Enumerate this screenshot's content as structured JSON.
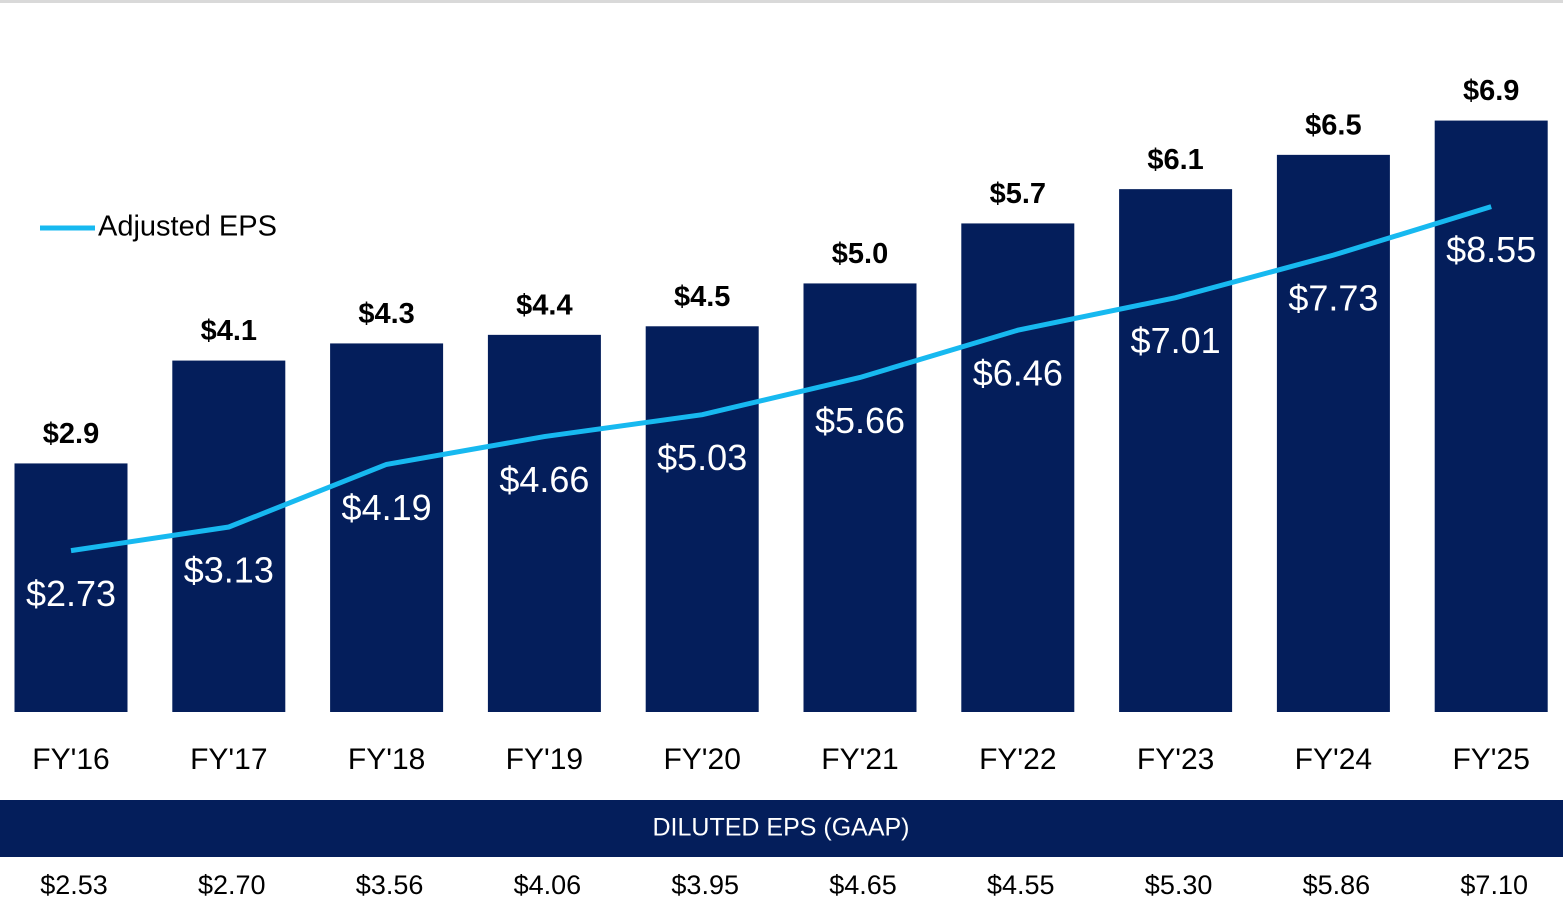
{
  "chart_data": {
    "type": "bar",
    "categories": [
      "FY'16",
      "FY'17",
      "FY'18",
      "FY'19",
      "FY'20",
      "FY'21",
      "FY'22",
      "FY'23",
      "FY'24",
      "FY'25"
    ],
    "series": [
      {
        "color": "#041e5b",
        "values": [
          2.9,
          4.1,
          4.3,
          4.4,
          4.5,
          5.0,
          5.7,
          6.1,
          6.5,
          6.9
        ],
        "value_labels": [
          "$2.9",
          "$4.1",
          "$4.3",
          "$4.4",
          "$4.5",
          "$5.0",
          "$5.7",
          "$6.1",
          "$6.5",
          "$6.9"
        ]
      },
      {
        "name": "Adjusted EPS",
        "type": "line",
        "axis": "y2",
        "color": "#17b9f0",
        "values": [
          2.73,
          3.13,
          4.19,
          4.66,
          5.03,
          5.66,
          6.46,
          7.01,
          7.73,
          8.55
        ],
        "value_labels": [
          "$2.73",
          "$3.13",
          "$4.19",
          "$4.66",
          "$5.03",
          "$5.66",
          "$6.46",
          "$7.01",
          "$7.73",
          "$8.55"
        ]
      }
    ],
    "ylim": [
      0,
      7.84
    ],
    "y2lim": [
      0,
      11.37
    ],
    "legend": "upper left"
  },
  "table": {
    "title": "DILUTED EPS (GAAP)",
    "values": [
      "$2.53",
      "$2.70",
      "$3.56",
      "$4.06",
      "$3.95",
      "$4.65",
      "$4.55",
      "$5.30",
      "$5.86",
      "$7.10"
    ]
  }
}
